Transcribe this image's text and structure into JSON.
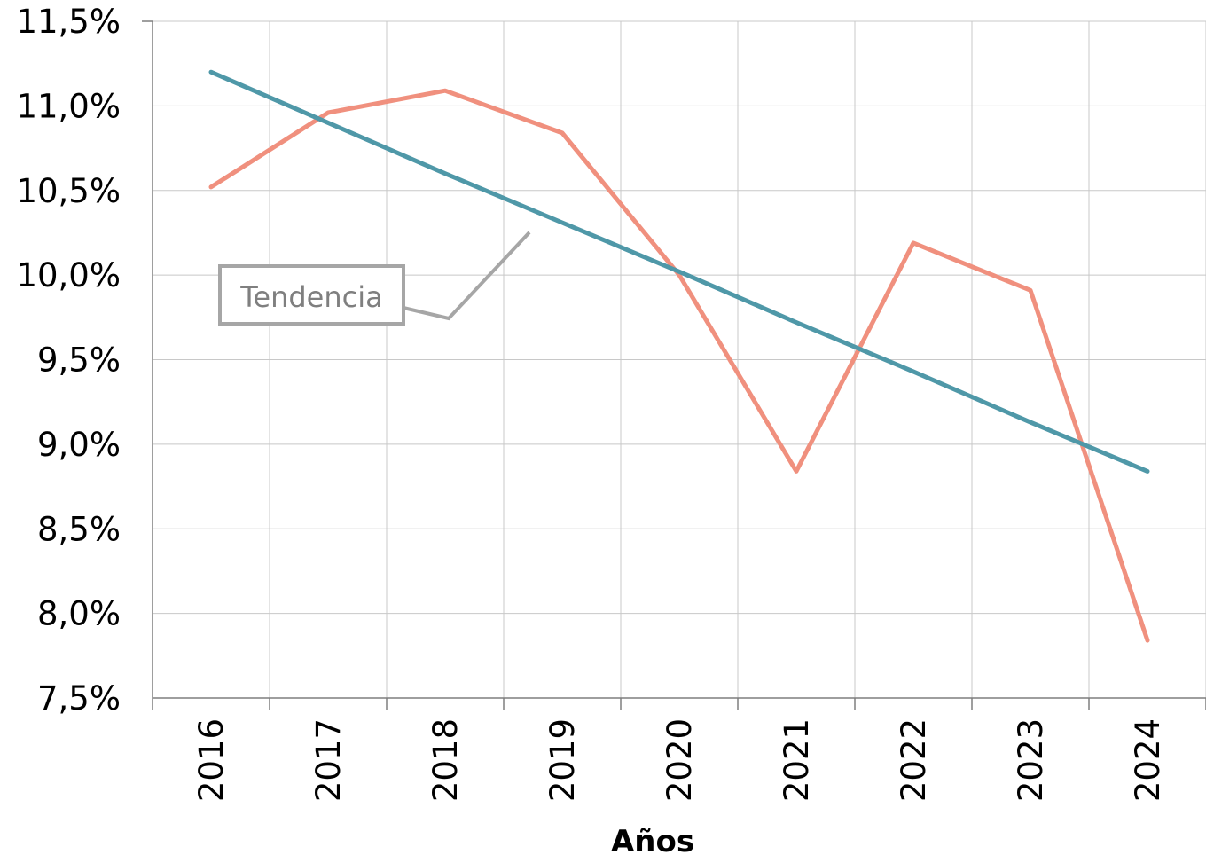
{
  "chart_data": {
    "type": "line",
    "title": "",
    "xlabel": "Años",
    "ylabel": "",
    "categories": [
      "2016",
      "2017",
      "2018",
      "2019",
      "2020",
      "2021",
      "2022",
      "2023",
      "2024"
    ],
    "ylim": [
      7.5,
      11.5
    ],
    "yticks": [
      7.5,
      8.0,
      8.5,
      9.0,
      9.5,
      10.0,
      10.5,
      11.0,
      11.5
    ],
    "ytick_labels": [
      "7,5%",
      "8,0%",
      "8,5%",
      "9,0%",
      "9,5%",
      "10,0%",
      "10,5%",
      "11,0%",
      "11,5%"
    ],
    "grid": true,
    "series": [
      {
        "values": [
          10.52,
          10.96,
          11.09,
          10.84,
          10.0,
          8.84,
          10.19,
          9.91,
          7.84
        ],
        "color": "#f0907e"
      },
      {
        "name": "Tendencia",
        "kind": "trendline",
        "values": [
          11.2,
          10.9,
          10.6,
          10.31,
          10.02,
          9.72,
          9.43,
          9.13,
          8.84
        ],
        "color": "#4f98a8"
      }
    ],
    "annotations": [
      {
        "text": "Tendencia",
        "target_series": "Tendencia",
        "callout_color": "#a6a6a6"
      }
    ]
  }
}
